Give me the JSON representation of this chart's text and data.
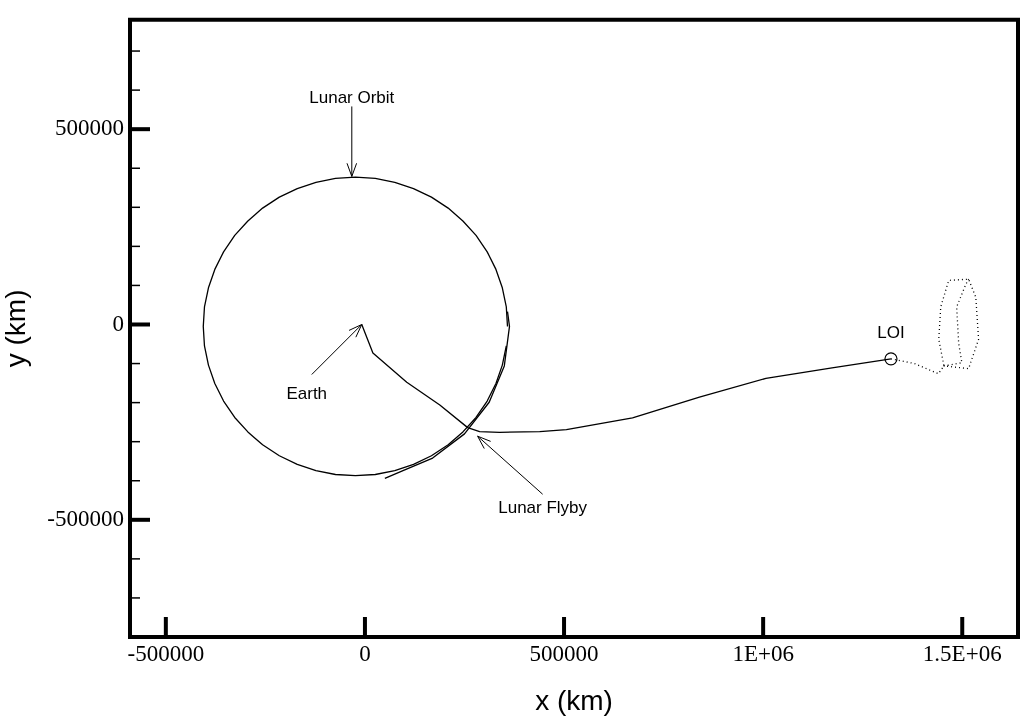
{
  "chart_data": {
    "type": "line",
    "xlabel": "x (km)",
    "ylabel": "y (km)",
    "xlim": [
      -590000,
      1640000
    ],
    "ylim": [
      -800000,
      780000
    ],
    "xticks": [
      -500000,
      0,
      500000,
      {
        "value": 1000000,
        "label": "1E+06"
      },
      {
        "value": 1500000,
        "label": "1.5E+06"
      }
    ],
    "yticks": [
      {
        "value": -700000,
        "label": null
      },
      {
        "value": -600000,
        "label": null
      },
      -500000,
      {
        "value": -400000,
        "label": null
      },
      {
        "value": -300000,
        "label": null
      },
      {
        "value": -200000,
        "label": null
      },
      {
        "value": -100000,
        "label": null
      },
      0,
      {
        "value": 100000,
        "label": null
      },
      {
        "value": 200000,
        "label": null
      },
      {
        "value": 300000,
        "label": null
      },
      {
        "value": 400000,
        "label": null
      },
      500000,
      {
        "value": 600000,
        "label": null
      },
      {
        "value": 700000,
        "label": null
      }
    ],
    "grid": false,
    "legend": false,
    "marker": "none",
    "series": [
      {
        "color": "#000000",
        "line_style": "solid",
        "x": [
          358000,
          355000,
          345000,
          329000,
          307000,
          279000,
          246000,
          209000,
          167000,
          122000,
          75000,
          26000,
          -24000,
          -74000,
          -123000,
          -170000,
          -215000,
          -257000,
          -294000,
          -327000,
          -355000,
          -377000,
          -393000,
          -403000,
          -406000,
          -403000,
          -393000,
          -377000,
          -355000,
          -327000,
          -294000,
          -257000,
          -215000,
          -170000,
          -123000,
          -74000,
          -24000,
          26000,
          75000,
          122000,
          167000,
          209000,
          246000,
          279000,
          307000,
          329000,
          345000,
          355000
        ],
        "values": [
          -5000,
          45000,
          94000,
          141000,
          186000,
          228000,
          265000,
          298000,
          326000,
          348000,
          364000,
          374000,
          377000,
          374000,
          364000,
          348000,
          326000,
          298000,
          265000,
          228000,
          186000,
          141000,
          94000,
          45000,
          -5000,
          -55000,
          -104000,
          -151000,
          -196000,
          -238000,
          -275000,
          -308000,
          -336000,
          -358000,
          -374000,
          -384000,
          -387000,
          -384000,
          -374000,
          -358000,
          -336000,
          -308000,
          -275000,
          -238000,
          -196000,
          -151000,
          -104000,
          -55000
        ]
      },
      {
        "color": "#000000",
        "line_style": "solid",
        "x": [
          358000,
          363000,
          350000,
          312000,
          250000,
          170000,
          100000,
          50000
        ],
        "values": [
          33000,
          -5000,
          -106000,
          -199000,
          -280000,
          -342000,
          -372000,
          -394000
        ]
      },
      {
        "color": "#000000",
        "line_style": "solid",
        "x": [
          -8000,
          20000,
          105000,
          188000,
          258000,
          288000,
          338000,
          439000,
          506000,
          672000,
          840000,
          1007000,
          1173000,
          1321000
        ],
        "values": [
          0,
          -73000,
          -148000,
          -206000,
          -264000,
          -274000,
          -276000,
          -274000,
          -269000,
          -239000,
          -186000,
          -138000,
          -111000,
          -88000
        ]
      },
      {
        "color": "#000000",
        "line_style": "dotted",
        "x": [
          1321000,
          1380000,
          1440000,
          1454000,
          1441000,
          1446000,
          1466000,
          1516000,
          1534000,
          1541000,
          1516000,
          1454000,
          1499000,
          1491000,
          1486000,
          1509000,
          1516000
        ],
        "values": [
          -88000,
          -100000,
          -126000,
          -106000,
          -38000,
          45000,
          113000,
          116000,
          70000,
          -38000,
          -113000,
          -106000,
          -98000,
          -48000,
          45000,
          103000,
          116000
        ]
      },
      {
        "type": "scatter",
        "marker": "circle",
        "color": "#000000",
        "x": [
          1321000
        ],
        "values": [
          -88000
        ]
      }
    ],
    "annotations": [
      {
        "text": "Lunar Orbit",
        "x": -33000,
        "y": 379000
      },
      {
        "text": "Earth",
        "x": -8000,
        "y": 0
      },
      {
        "text": "Lunar Flyby",
        "x": 283000,
        "y": -286000
      },
      {
        "text": "LOI",
        "x": 1321000,
        "y": -88000
      }
    ]
  }
}
